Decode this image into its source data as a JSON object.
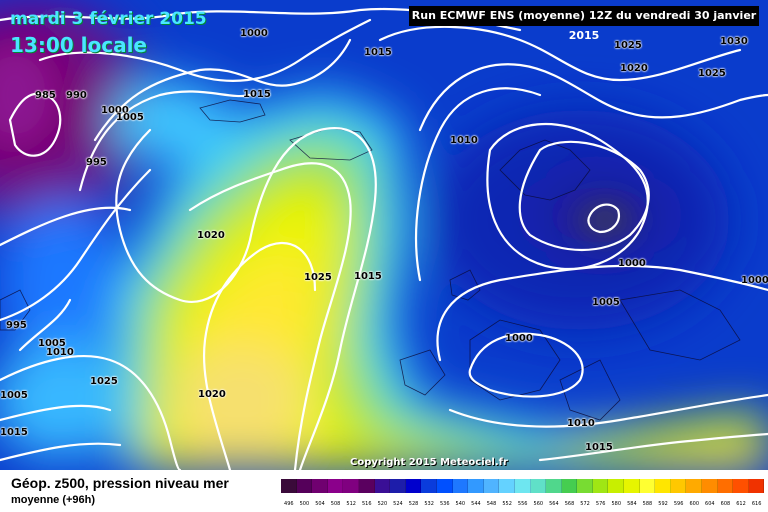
{
  "header": {
    "date": "mardi 3 février 2015",
    "time": "13:00 locale",
    "run": "Run ECMWF ENS (moyenne) 12Z du vendredi 30 janvier 2015"
  },
  "copyright": "Copyright 2015 Meteociel.fr",
  "footer": {
    "title": "Géop. z500, pression niveau mer",
    "subtitle": "moyenne   (+96h)"
  },
  "legend": {
    "colors": [
      "#3a0a3a",
      "#55005a",
      "#700070",
      "#8b008b",
      "#800080",
      "#5a005f",
      "#3a0f96",
      "#1d1daa",
      "#0000cd",
      "#0a3cdc",
      "#0050ff",
      "#1e78ff",
      "#3299ff",
      "#50b4ff",
      "#64d2ff",
      "#6ee6f0",
      "#60e0c8",
      "#50d78c",
      "#46cd50",
      "#78dc32",
      "#a0e614",
      "#c8ef00",
      "#e6f500",
      "#ffff32",
      "#ffe600",
      "#ffc800",
      "#ffaa00",
      "#ff8c00",
      "#ff6e00",
      "#ff5000",
      "#f03200",
      "#d21400",
      "#b40000",
      "#960000",
      "#780000",
      "#5a0000"
    ],
    "labels": [
      "496",
      "500",
      "504",
      "508",
      "512",
      "516",
      "520",
      "524",
      "528",
      "532",
      "536",
      "540",
      "544",
      "548",
      "552",
      "556",
      "560",
      "564",
      "568",
      "572",
      "576",
      "580",
      "584",
      "588",
      "592",
      "596",
      "600",
      "604",
      "608",
      "612",
      "616"
    ]
  },
  "isobar_labels": [
    "1000",
    "1015",
    "1025",
    "1030",
    "1020",
    "1025",
    "985",
    "990",
    "1000",
    "1005",
    "1015",
    "995",
    "1010",
    "1020",
    "1025",
    "1015",
    "1000",
    "1000",
    "1005",
    "1000",
    "995",
    "1005",
    "1010",
    "1025",
    "1005",
    "1020",
    "1015",
    "1010",
    "1015"
  ]
}
